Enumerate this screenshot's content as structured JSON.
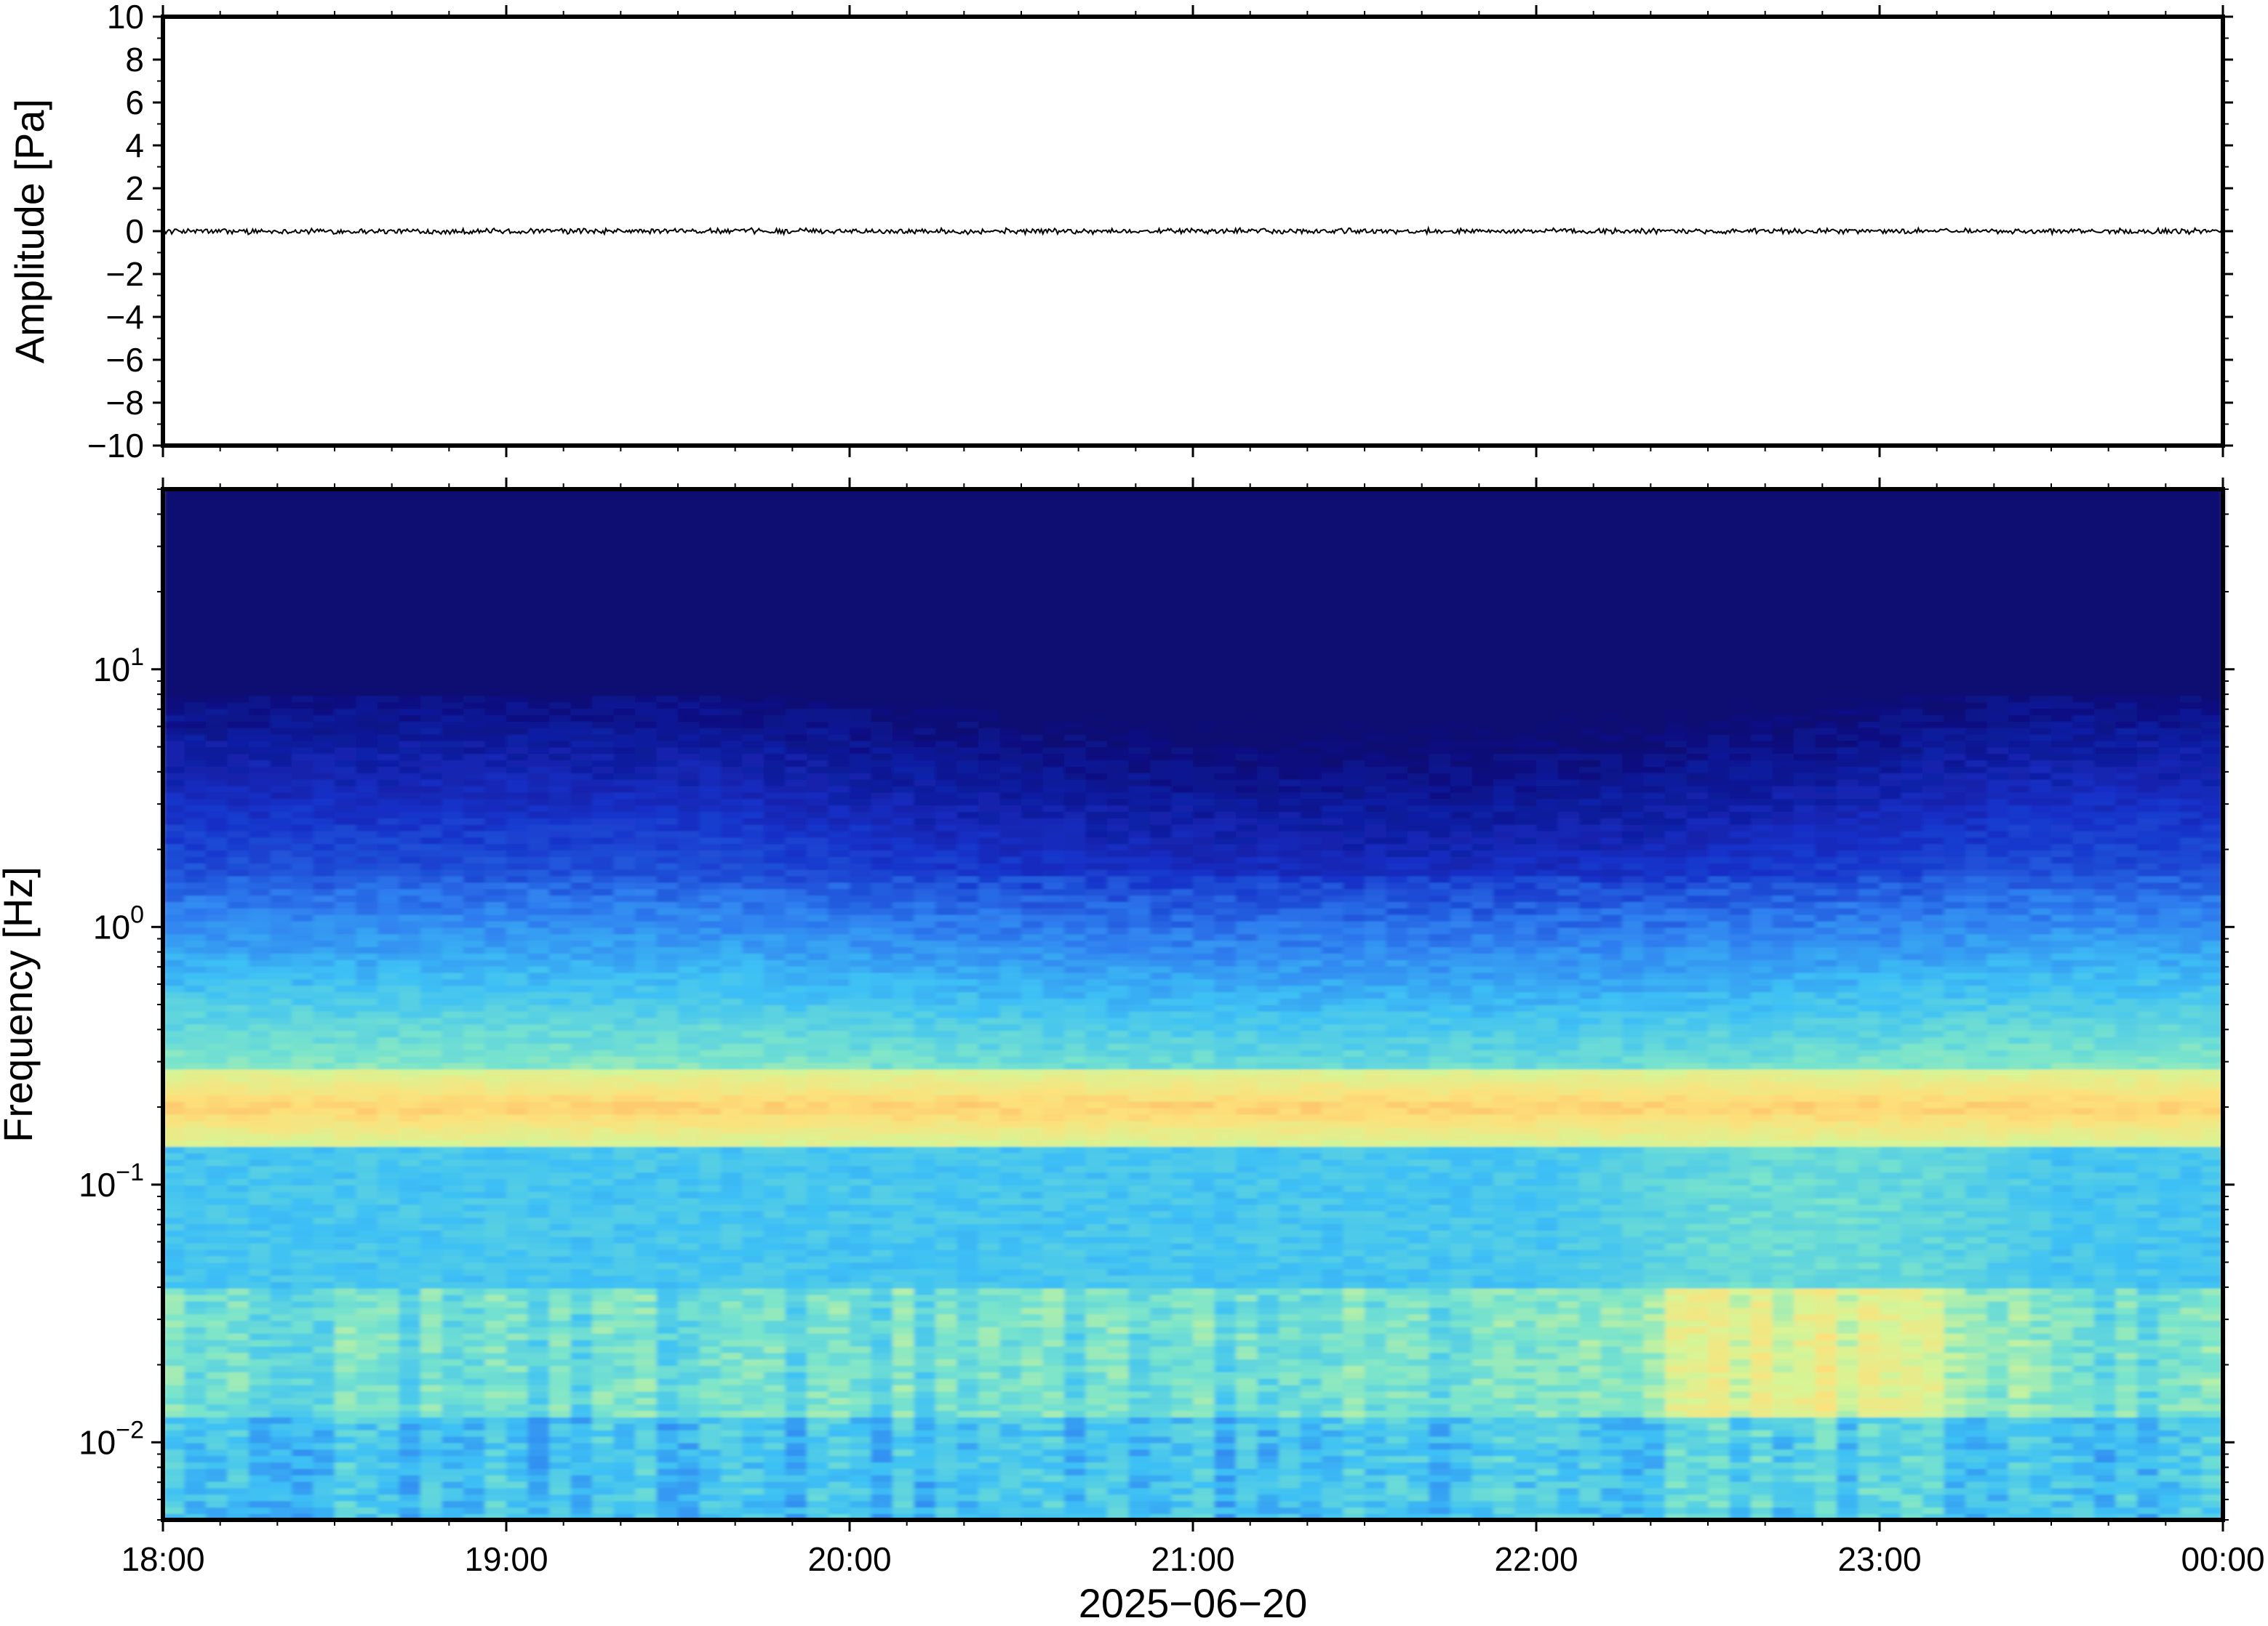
{
  "chart_data": [
    {
      "type": "line",
      "panel": "waveform",
      "ylabel": "Amplitude [Pa]",
      "ylim": [
        -10,
        10
      ],
      "yticks": [
        "10",
        "8",
        "6",
        "4",
        "2",
        "0",
        "−2",
        "−4",
        "−6",
        "−8",
        "−10"
      ],
      "ytick_values": [
        10,
        8,
        6,
        4,
        2,
        0,
        -2,
        -4,
        -6,
        -8,
        -10
      ],
      "xlim": [
        "2025-06-20 18:00",
        "2025-06-21 00:00"
      ],
      "trace": {
        "approx_peak_abs": 0.15,
        "mean": 0
      },
      "trace_color": "#000000",
      "grid": false
    },
    {
      "type": "heatmap",
      "panel": "spectrogram",
      "ylabel": "Frequency [Hz]",
      "yscale": "log",
      "ylim_hz": [
        0.005,
        50
      ],
      "yticks": [
        {
          "base": "10",
          "exp": "1",
          "value": 10
        },
        {
          "base": "10",
          "exp": "0",
          "value": 1
        },
        {
          "base": "10",
          "exp": "−1",
          "value": 0.1
        },
        {
          "base": "10",
          "exp": "−2",
          "value": 0.01
        }
      ],
      "xticks": [
        "18:00",
        "19:00",
        "20:00",
        "21:00",
        "22:00",
        "23:00",
        "00:00"
      ],
      "xlabel": "2025−06−20",
      "colormap": [
        "#0b0872",
        "#1530c8",
        "#2f7ff0",
        "#3dc0f5",
        "#79e4cc",
        "#d6f596",
        "#fde07a",
        "#fca65a"
      ],
      "features": {
        "microseism_peak_hz": 0.2,
        "quiet_above_hz": 8,
        "elevated_low_freq_window": [
          "22:00",
          "23:30"
        ]
      }
    }
  ]
}
